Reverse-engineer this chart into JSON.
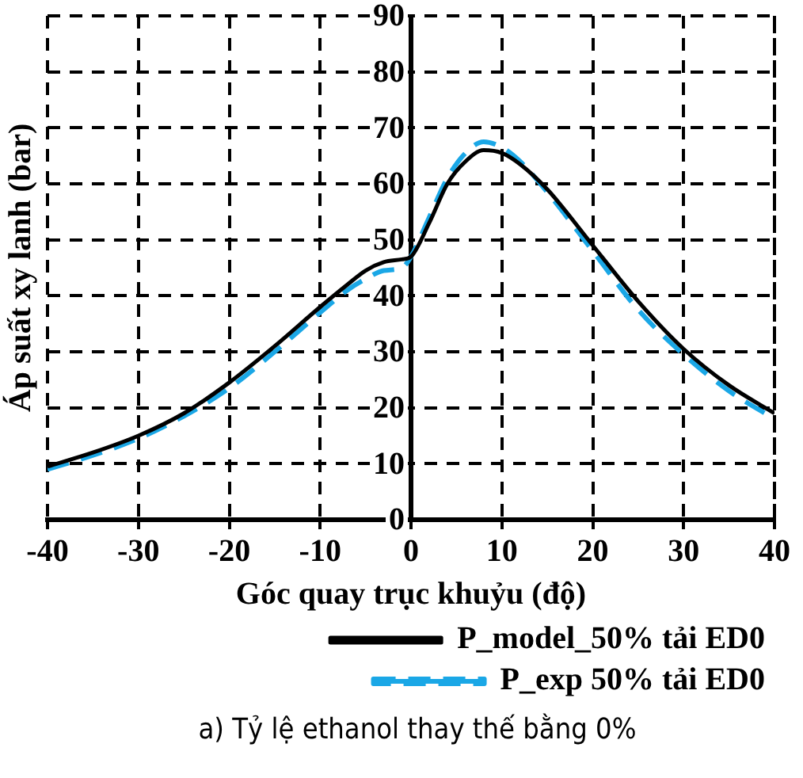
{
  "chart_data": {
    "type": "line",
    "xlabel": "Góc quay trục khuỷu (độ)",
    "ylabel": "Áp suất xy lanh (bar)",
    "x": [
      -40,
      -35,
      -30,
      -25,
      -20,
      -15,
      -10,
      -7,
      -5,
      -3,
      -1,
      0,
      2,
      4,
      6,
      8,
      10,
      12,
      15,
      20,
      25,
      30,
      35,
      40
    ],
    "series": [
      {
        "name": "P_model_50% tải ED0",
        "color": "#000000",
        "line_style": "solid",
        "values": [
          9.5,
          12,
          15,
          19,
          24.5,
          31,
          38,
          42,
          44.5,
          46,
          46.5,
          47,
          53,
          60,
          64,
          66,
          65.5,
          63.5,
          59,
          49,
          39,
          30.5,
          24,
          19
        ]
      },
      {
        "name": "P_exp 50% tải ED0",
        "color": "#1aa7e6",
        "line_style": "dashed",
        "values": [
          9,
          11.5,
          14.5,
          18.5,
          23.5,
          30,
          37,
          41,
          43,
          44.5,
          45,
          47,
          54,
          61,
          65.5,
          67.5,
          66.5,
          64,
          58.5,
          48,
          37.5,
          29.5,
          23,
          18
        ]
      }
    ],
    "xlim": [
      -40,
      40
    ],
    "xticks": [
      -40,
      -30,
      -20,
      -10,
      0,
      10,
      20,
      30,
      40
    ],
    "ylim": [
      0,
      90
    ],
    "yticks": [
      0,
      10,
      20,
      30,
      40,
      50,
      60,
      70,
      80,
      90
    ],
    "grid": true,
    "legend": "bottom",
    "marker": "none",
    "annotations": [
      "a) Tỷ lệ ethanol thay thế bằng 0%"
    ]
  }
}
